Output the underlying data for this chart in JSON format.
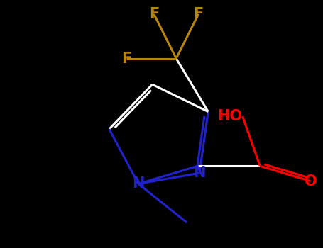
{
  "bg_color": "#000000",
  "bond_color_white": "#ffffff",
  "atom_colors": {
    "N": "#2222cc",
    "O": "#ff0000",
    "F": "#b8860b"
  },
  "fig_width": 4.55,
  "fig_height": 3.5,
  "dpi": 100,
  "bond_lw": 2.2,
  "font_size": 15
}
